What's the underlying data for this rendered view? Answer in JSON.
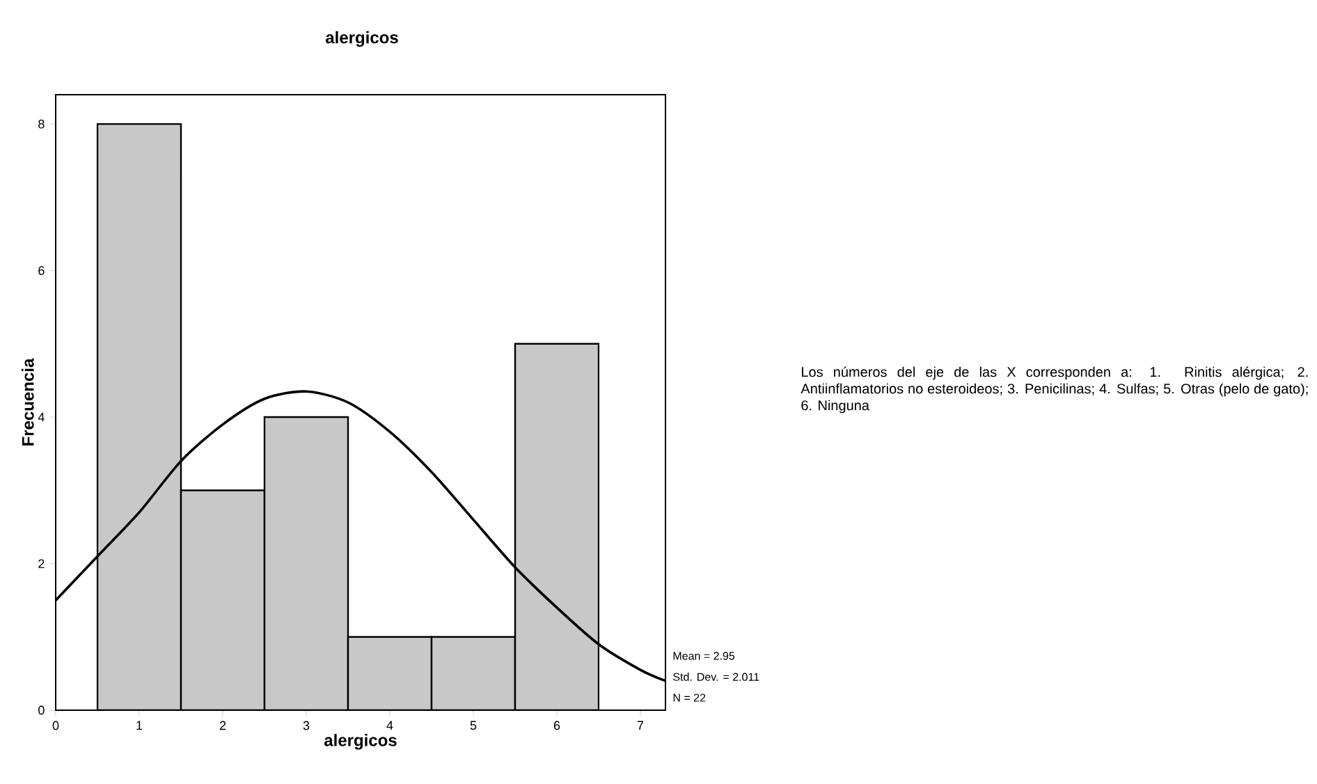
{
  "chart_data": {
    "type": "histogram",
    "title": "alergicos",
    "xlabel": "alergicos",
    "ylabel": "Frecuencia",
    "bins": [
      0.5,
      1.5,
      2.5,
      3.5,
      4.5,
      5.5,
      6.5
    ],
    "values": [
      8,
      3,
      4,
      1,
      1,
      5
    ],
    "color": "#c8c8c8",
    "series": [
      {
        "type": "line",
        "color": "#000000",
        "x": [
          0,
          0.5,
          1,
          1.5,
          2,
          2.5,
          3,
          3.5,
          4,
          4.5,
          5,
          5.5,
          6,
          6.5,
          7,
          7.3
        ],
        "values": [
          1.5,
          2.1,
          2.7,
          3.4,
          3.9,
          4.25,
          4.35,
          4.2,
          3.8,
          3.25,
          2.6,
          1.95,
          1.4,
          0.9,
          0.55,
          0.4
        ]
      }
    ],
    "xlim": [
      0,
      7.3
    ],
    "ylim": [
      0,
      8.4
    ],
    "xticks": [
      0,
      1,
      2,
      3,
      4,
      5,
      6,
      7
    ],
    "yticks": [
      0,
      2,
      4,
      6,
      8
    ],
    "annotations": [
      "Mean = 2.95",
      "Std. Dev. = 2.011",
      "N = 22",
      "Los números del eje de las X corresponden a: 1. Rinitis alérgica; 2. Antiinflamatorios no esteroideos; 3. Penicilinas; 4. Sulfas;  5. Otras (pelo de gato); 6. Ninguna"
    ]
  }
}
